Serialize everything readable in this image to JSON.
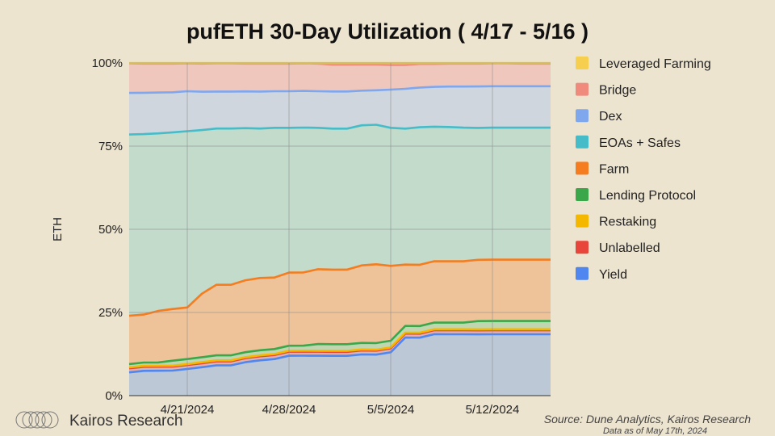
{
  "chart_data": {
    "type": "area",
    "stacked": true,
    "normalized": true,
    "title": "pufETH 30-Day Utilization ( 4/17 - 5/16 )",
    "ylabel": "ETH",
    "ylim": [
      0,
      100
    ],
    "y_ticks": [
      "0%",
      "25%",
      "50%",
      "75%",
      "100%"
    ],
    "x_ticks": [
      {
        "day": 4,
        "label": "4/21/2024"
      },
      {
        "day": 11,
        "label": "4/28/2024"
      },
      {
        "day": 18,
        "label": "5/5/2024"
      },
      {
        "day": 25,
        "label": "5/12/2024"
      }
    ],
    "grid": true,
    "legend_position": "right",
    "x": [
      "4/17",
      "4/18",
      "4/19",
      "4/20",
      "4/21",
      "4/22",
      "4/23",
      "4/24",
      "4/25",
      "4/26",
      "4/27",
      "4/28",
      "4/29",
      "4/30",
      "5/1",
      "5/2",
      "5/3",
      "5/4",
      "5/5",
      "5/6",
      "5/7",
      "5/8",
      "5/9",
      "5/10",
      "5/11",
      "5/12",
      "5/13",
      "5/14",
      "5/15",
      "5/16"
    ],
    "series": [
      {
        "name": "Yield",
        "color": "#4f86f0",
        "fill": "#bcc8d6",
        "values": [
          7.0,
          7.5,
          7.5,
          7.5,
          8.0,
          8.5,
          9.0,
          9.0,
          10.0,
          10.5,
          11.0,
          12.0,
          12.0,
          12.0,
          12.0,
          12.0,
          12.5,
          12.5,
          13.0,
          17.5,
          17.5,
          18.5,
          18.5,
          18.5,
          18.5,
          18.5,
          18.5,
          18.5,
          18.5,
          18.5
        ]
      },
      {
        "name": "Unlabelled",
        "color": "#e8463a",
        "fill": "#d9b5b3",
        "values": [
          1.2,
          1.2,
          1.2,
          1.2,
          1.2,
          1.2,
          1.2,
          1.2,
          1.2,
          1.2,
          1.2,
          1.2,
          1.2,
          1.2,
          1.2,
          1.2,
          1.2,
          1.2,
          1.2,
          1.2,
          1.2,
          1.2,
          1.2,
          1.2,
          1.2,
          1.2,
          1.2,
          1.2,
          1.2,
          1.2
        ]
      },
      {
        "name": "Restaking",
        "color": "#f5b800",
        "fill": "#efd39a",
        "values": [
          0.3,
          0.3,
          0.3,
          0.3,
          0.3,
          0.3,
          0.3,
          0.3,
          0.3,
          0.3,
          0.3,
          0.3,
          0.3,
          0.3,
          0.3,
          0.3,
          0.3,
          0.3,
          0.3,
          0.3,
          0.3,
          0.3,
          0.3,
          0.3,
          0.3,
          0.3,
          0.3,
          0.3,
          0.3,
          0.3
        ]
      },
      {
        "name": "Lending Protocol",
        "color": "#3aa84a",
        "fill": "#c0d6b0",
        "values": [
          1.0,
          1.0,
          1.0,
          1.5,
          1.5,
          1.5,
          1.5,
          1.5,
          1.5,
          1.5,
          1.5,
          1.5,
          1.5,
          2.0,
          2.0,
          2.0,
          2.0,
          2.0,
          2.0,
          2.0,
          2.0,
          2.0,
          2.0,
          2.0,
          2.5,
          2.5,
          2.5,
          2.5,
          2.5,
          2.5
        ]
      },
      {
        "name": "Farm",
        "color": "#f57c1f",
        "fill": "#efc39a",
        "values": [
          14.5,
          14.5,
          15.5,
          15.5,
          15.5,
          19.0,
          21.0,
          21.0,
          21.5,
          21.5,
          21.5,
          22.0,
          22.0,
          22.5,
          22.5,
          22.5,
          23.5,
          24.0,
          22.5,
          18.5,
          18.5,
          18.5,
          18.5,
          18.5,
          18.5,
          18.5,
          18.5,
          18.5,
          18.5,
          18.5
        ]
      },
      {
        "name": "EOAs + Safes",
        "color": "#46bcc9",
        "fill": "#c2dbcb",
        "values": [
          54.5,
          54.5,
          53.5,
          53.0,
          53.0,
          49.0,
          46.5,
          46.5,
          45.5,
          44.5,
          45.0,
          43.5,
          43.5,
          42.5,
          42.5,
          42.5,
          42.5,
          42.5,
          41.5,
          41.0,
          41.5,
          40.5,
          40.5,
          40.3,
          39.8,
          39.8,
          39.8,
          39.8,
          39.8,
          39.8
        ]
      },
      {
        "name": "Dex",
        "color": "#7fa7ee",
        "fill": "#cfd6de",
        "values": [
          12.5,
          12.5,
          12.3,
          12.0,
          12.0,
          11.5,
          11.0,
          11.0,
          11.0,
          11.0,
          11.0,
          11.0,
          11.0,
          11.0,
          11.2,
          11.2,
          10.5,
          10.5,
          11.5,
          12.0,
          12.0,
          12.0,
          12.2,
          12.4,
          12.5,
          12.5,
          12.5,
          12.5,
          12.5,
          12.5
        ]
      },
      {
        "name": "Bridge",
        "color": "#f08a7c",
        "fill": "#f0c7bd",
        "values": [
          8.9,
          8.8,
          8.7,
          8.6,
          8.4,
          8.4,
          8.4,
          8.4,
          8.3,
          8.3,
          8.3,
          8.3,
          8.3,
          8.3,
          8.1,
          8.1,
          7.9,
          7.8,
          7.4,
          7.2,
          7.1,
          6.9,
          6.9,
          6.9,
          6.9,
          6.9,
          6.9,
          6.8,
          6.8,
          6.8
        ]
      },
      {
        "name": "Leveraged Farming",
        "color": "#f7cf4f",
        "fill": "#f3dc95",
        "values": [
          0.1,
          0.2,
          0.2,
          0.2,
          0.1,
          0.2,
          0.1,
          0.1,
          0.2,
          0.2,
          0.2,
          0.2,
          0.1,
          0.2,
          0.5,
          0.5,
          0.5,
          0.5,
          0.6,
          0.6,
          0.3,
          0.3,
          0.2,
          0.2,
          0.2,
          0.1,
          0.1,
          0.2,
          0.2,
          0.2
        ]
      }
    ],
    "legend_order": [
      "Leveraged Farming",
      "Bridge",
      "Dex",
      "EOAs + Safes",
      "Farm",
      "Lending Protocol",
      "Restaking",
      "Unlabelled",
      "Yield"
    ]
  },
  "footer": {
    "brand": "Kairos Research",
    "source": "Source: Dune Analytics, Kairos Research",
    "note": "Data as of May 17th, 2024"
  },
  "colors": {
    "background": "#ede4d0",
    "grid": "#8a8a8a"
  }
}
